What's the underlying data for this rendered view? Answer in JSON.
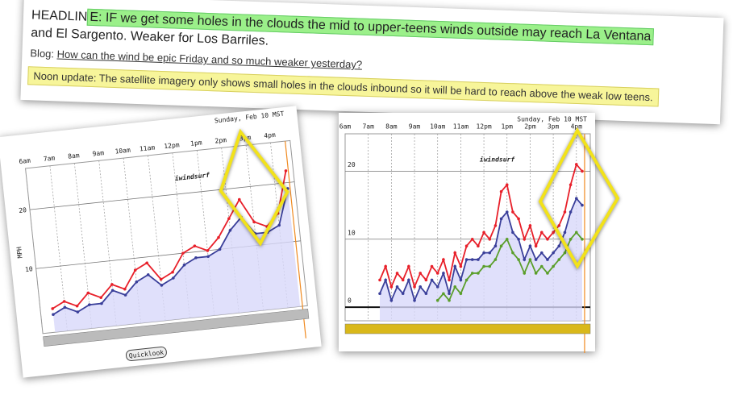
{
  "banner": {
    "headline_start": "HEADLIN",
    "headline": "E: IF we get some holes in the clouds the mid to upper-teens winds outside may reach La Ventana",
    "headline_cont": "and El Sargento. Weaker for Los Barriles.",
    "blog_label": "Blog:",
    "blog_link": "How can the wind be epic Friday and so much weaker yesterday?",
    "update": "Noon update: The satellite imagery only shows small holes in the clouds inbound so it will be hard to reach above the weak low teens."
  },
  "chart_data": [
    {
      "type": "line",
      "title": "Sunday, Feb 10 MST",
      "watermark": "iwindsurf",
      "ylabel": "MPH",
      "button": "Quicklook",
      "x": [
        6.5,
        7,
        7.5,
        8,
        8.5,
        9,
        9.5,
        10,
        10.5,
        11,
        11.5,
        12,
        12.5,
        13,
        13.5,
        14,
        14.5,
        15,
        15.5,
        16,
        16.5
      ],
      "series": [
        {
          "color": "#e8202a",
          "values": [
            3,
            4,
            3,
            5,
            4,
            6,
            5,
            8,
            9,
            6,
            7,
            10,
            11,
            10,
            12,
            15,
            18,
            14,
            13,
            15,
            22
          ]
        },
        {
          "color": "#3a3f9a",
          "values": [
            2,
            3,
            2,
            3,
            3,
            5,
            4,
            6,
            7,
            5,
            6,
            8,
            9,
            9,
            10,
            13,
            15,
            12,
            12,
            13,
            19
          ]
        }
      ],
      "xlim": [
        6,
        16.8
      ],
      "ylim": [
        -1,
        27
      ],
      "xticks": [
        {
          "value": 6,
          "label": "6am"
        },
        {
          "value": 7,
          "label": "7am"
        },
        {
          "value": 8,
          "label": "8am"
        },
        {
          "value": 9,
          "label": "9am"
        },
        {
          "value": 10,
          "label": "10am"
        },
        {
          "value": 11,
          "label": "11am"
        },
        {
          "value": 12,
          "label": "12pm"
        },
        {
          "value": 13,
          "label": "1pm"
        },
        {
          "value": 14,
          "label": "2pm"
        },
        {
          "value": 15,
          "label": "3pm"
        },
        {
          "value": 16,
          "label": "4pm"
        }
      ],
      "yticks": [
        10,
        20
      ],
      "grid": true
    },
    {
      "type": "line",
      "title": "Sunday, Feb 10 MST",
      "watermark": "iwindsurf",
      "x": [
        7.5,
        7.75,
        8,
        8.25,
        8.5,
        8.75,
        9,
        9.25,
        9.5,
        9.75,
        10,
        10.25,
        10.5,
        10.75,
        11,
        11.25,
        11.5,
        11.75,
        12,
        12.25,
        12.5,
        12.75,
        13,
        13.25,
        13.5,
        13.75,
        14,
        14.25,
        14.5,
        14.75,
        15,
        15.25,
        15.5,
        15.75,
        16,
        16.25
      ],
      "series": [
        {
          "color": "#e8202a",
          "values": [
            4,
            6,
            3,
            5,
            4,
            6,
            3,
            5,
            4,
            6,
            5,
            7,
            4,
            8,
            6,
            9,
            10,
            9,
            11,
            10,
            12,
            17,
            18,
            14,
            13,
            10,
            12,
            9,
            11,
            10,
            11,
            12,
            14,
            18,
            21,
            20
          ]
        },
        {
          "color": "#3a3f9a",
          "values": [
            2,
            4,
            1,
            3,
            2,
            4,
            1,
            3,
            2,
            4,
            3,
            5,
            2,
            6,
            4,
            7,
            7,
            7,
            8,
            8,
            9,
            13,
            14,
            11,
            10,
            7,
            9,
            7,
            8,
            7,
            8,
            9,
            11,
            14,
            16,
            15
          ]
        },
        {
          "color": "#5a9e2a",
          "values": [
            null,
            null,
            null,
            null,
            null,
            null,
            null,
            null,
            null,
            null,
            1,
            2,
            1,
            3,
            2,
            4,
            5,
            5,
            6,
            6,
            7,
            9,
            10,
            8,
            7,
            5,
            7,
            5,
            6,
            5,
            6,
            7,
            8,
            10,
            11,
            10
          ]
        }
      ],
      "xlim": [
        6,
        16.6
      ],
      "ylim": [
        -2,
        25.5
      ],
      "xticks": [
        {
          "value": 6,
          "label": "6am"
        },
        {
          "value": 7,
          "label": "7am"
        },
        {
          "value": 8,
          "label": "8am"
        },
        {
          "value": 9,
          "label": "9am"
        },
        {
          "value": 10,
          "label": "10am"
        },
        {
          "value": 11,
          "label": "11am"
        },
        {
          "value": 12,
          "label": "12pm"
        },
        {
          "value": 13,
          "label": "1pm"
        },
        {
          "value": 14,
          "label": "2pm"
        },
        {
          "value": 15,
          "label": "3pm"
        },
        {
          "value": 16,
          "label": "4pm"
        }
      ],
      "yticks": [
        0,
        10,
        20
      ],
      "grid": true
    }
  ]
}
